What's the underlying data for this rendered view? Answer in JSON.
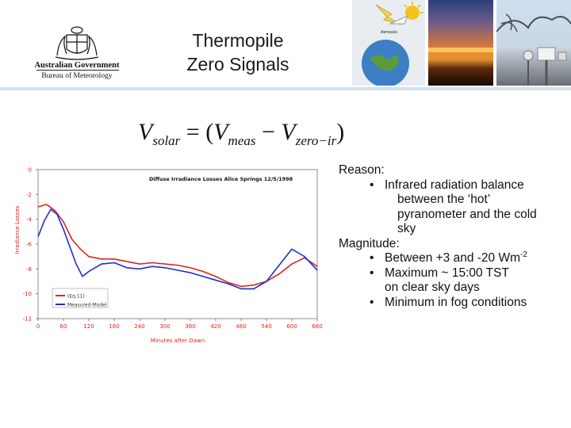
{
  "slide": {
    "title_lines": [
      "Thermopile",
      "Zero Signals"
    ]
  },
  "logo": {
    "line1": "Australian Government",
    "line2": "Bureau of Meteorology"
  },
  "photos": [
    {
      "icon": "sun-earth-diagram-icon",
      "label": "Aerosols"
    },
    {
      "icon": "sunset-horizon-icon"
    },
    {
      "icon": "radiometer-station-icon"
    }
  ],
  "equation": {
    "lhs": "V",
    "lhs_sub": "solar",
    "eq_open": "= (",
    "t1": "V",
    "t1_sub": "meas",
    "minus": "−",
    "t2": "V",
    "t2_sub": "zero−ir",
    "close": ")"
  },
  "reason": {
    "heading1": "Reason:",
    "bullet1_line1": "Infrared radiation balance",
    "bullet1_line2": "between the ‘hot’",
    "bullet1_line3": "pyranometer and the cold",
    "bullet1_line4": "sky",
    "heading2": "Magnitude:",
    "bullet2_pre": "Between +3 and -20 Wm",
    "bullet2_sup": "-2",
    "bullet3_line1": "Maximum ~ 15:00 TST",
    "bullet3_line2": "on clear sky days",
    "bullet4": "Minimum in fog conditions",
    "bullet_glyph": "•"
  },
  "colors": {
    "series_red": "#e0241b",
    "series_blue": "#1d2fd6",
    "frame": "#8c8c8c"
  },
  "chart_data": {
    "type": "line",
    "title": "Diffuse Irradiance Losses Alice Springs 12/5/1998",
    "xlabel": "Minutes after Dawn",
    "ylabel": "Irradiance Losses",
    "xlim": [
      0,
      660
    ],
    "ylim": [
      -12,
      0
    ],
    "x_ticks": [
      0,
      60,
      120,
      180,
      240,
      300,
      360,
      420,
      480,
      540,
      600,
      660
    ],
    "y_ticks": [
      0,
      -2,
      -4,
      -6,
      -8,
      -10,
      -12
    ],
    "grid": false,
    "legend_position": "bottom-left",
    "series": [
      {
        "name": "(Eq.11)",
        "color": "#e0241b",
        "x": [
          0,
          20,
          40,
          60,
          80,
          100,
          120,
          150,
          180,
          210,
          240,
          270,
          300,
          330,
          360,
          390,
          420,
          450,
          480,
          510,
          540,
          570,
          600,
          630,
          660
        ],
        "y": [
          -3.0,
          -2.8,
          -3.3,
          -4.2,
          -5.6,
          -6.4,
          -7.0,
          -7.2,
          -7.2,
          -7.4,
          -7.6,
          -7.5,
          -7.6,
          -7.7,
          -7.9,
          -8.2,
          -8.6,
          -9.1,
          -9.4,
          -9.3,
          -9.0,
          -8.4,
          -7.6,
          -7.1,
          -7.8
        ]
      },
      {
        "name": "Measured-Model",
        "color": "#1d2fd6",
        "x": [
          0,
          15,
          30,
          45,
          60,
          75,
          90,
          105,
          120,
          150,
          180,
          210,
          240,
          270,
          300,
          330,
          360,
          390,
          420,
          450,
          480,
          510,
          540,
          570,
          600,
          630,
          660
        ],
        "y": [
          -5.4,
          -4.1,
          -3.2,
          -3.6,
          -4.8,
          -6.2,
          -7.6,
          -8.6,
          -8.2,
          -7.6,
          -7.5,
          -7.9,
          -8.0,
          -7.8,
          -7.9,
          -8.1,
          -8.3,
          -8.6,
          -8.9,
          -9.2,
          -9.6,
          -9.6,
          -9.0,
          -7.7,
          -6.4,
          -7.0,
          -8.1
        ]
      }
    ]
  }
}
